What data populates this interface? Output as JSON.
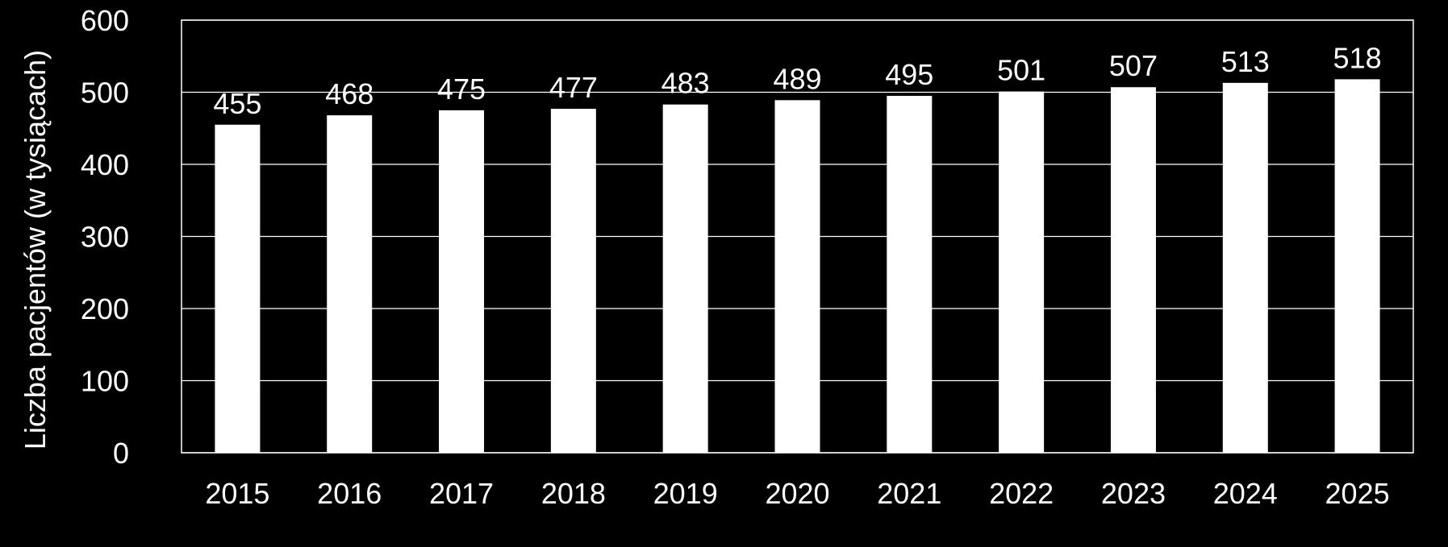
{
  "chart_data": {
    "type": "bar",
    "title": "",
    "xlabel": "",
    "ylabel": "Liczba pacjentów (w tysiącach)",
    "categories": [
      "2015",
      "2016",
      "2017",
      "2018",
      "2019",
      "2020",
      "2021",
      "2022",
      "2023",
      "2024",
      "2025"
    ],
    "values": [
      455,
      468,
      475,
      477,
      483,
      489,
      495,
      501,
      507,
      513,
      518
    ],
    "data_labels": [
      "455",
      "468",
      "475",
      "477",
      "483",
      "489",
      "495",
      "501",
      "507",
      "513",
      "518"
    ],
    "ylim": [
      0,
      600
    ],
    "yticks": [
      0,
      100,
      200,
      300,
      400,
      500,
      600
    ],
    "ytick_labels": [
      "0",
      "100",
      "200",
      "300",
      "400",
      "500",
      "600"
    ],
    "grid": true,
    "legend": "none",
    "colors": {
      "background": "#000000",
      "bar": "#ffffff",
      "grid": "#ffffff",
      "text": "#ffffff"
    }
  }
}
